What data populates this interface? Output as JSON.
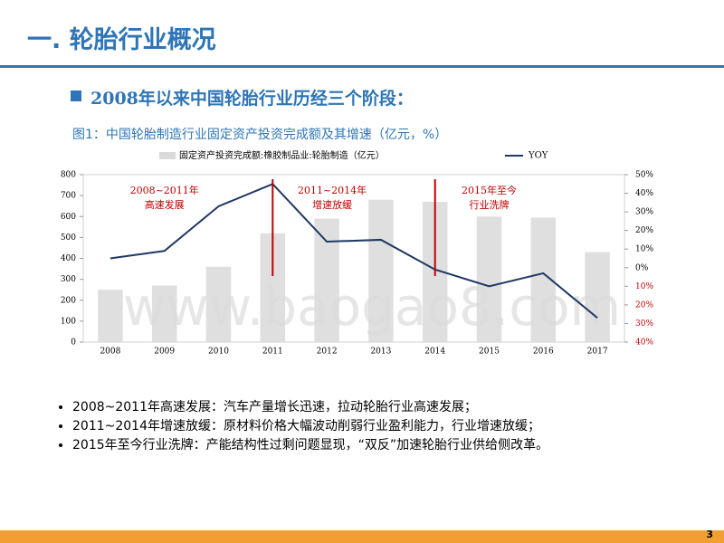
{
  "header": {
    "title": "一. 轮胎行业概况"
  },
  "section_heading": "2008年以来中国轮胎行业历经三个阶段：",
  "chart_data": {
    "type": "bar-line",
    "title": "图1：中国轮胎制造行业固定资产投资完成额及其增速（亿元，%）",
    "categories": [
      "2008",
      "2009",
      "2010",
      "2011",
      "2012",
      "2013",
      "2014",
      "2015",
      "2016",
      "2017"
    ],
    "series": [
      {
        "name": "固定资产投资完成额:橡胶制品业:轮胎制造（亿元）",
        "type": "bar",
        "color": "#d9d9d9",
        "values": [
          250,
          270,
          360,
          520,
          590,
          680,
          670,
          600,
          595,
          430
        ]
      },
      {
        "name": "YOY",
        "type": "line",
        "axis": "y2",
        "color": "#1f3864",
        "values": [
          5,
          9,
          33,
          45,
          14,
          15,
          -1,
          -10,
          -3,
          -27
        ]
      }
    ],
    "ylim": [
      0,
      800
    ],
    "yticks": [
      0,
      100,
      200,
      300,
      400,
      500,
      600,
      700,
      800
    ],
    "y2lim": [
      -40,
      50
    ],
    "y2ticks": [
      {
        "value": -40,
        "label": "40%"
      },
      {
        "value": -30,
        "label": "30%"
      },
      {
        "value": -20,
        "label": "20%"
      },
      {
        "value": -10,
        "label": "10%"
      },
      {
        "value": 0,
        "label": "0%"
      },
      {
        "value": 10,
        "label": "10%"
      },
      {
        "value": 20,
        "label": "20%"
      },
      {
        "value": 30,
        "label": "30%"
      },
      {
        "value": 40,
        "label": "40%"
      },
      {
        "value": 50,
        "label": "50%"
      }
    ],
    "y2_negative_tick_color": "#c00000",
    "annotations": [
      {
        "lines": [
          "2008~2011年",
          "高速发展"
        ],
        "color": "#c00000"
      },
      {
        "lines": [
          "2011~2014年",
          "增速放缓"
        ],
        "color": "#c00000"
      },
      {
        "lines": [
          "2015年至今",
          "行业洗牌"
        ],
        "color": "#c00000"
      }
    ],
    "watermark": "www.baogao8.com"
  },
  "bullets": [
    "2008~2011年高速发展：汽车产量增长迅速，拉动轮胎行业高速发展；",
    "2011~2014年增速放缓：原材料价格大幅波动削弱行业盈利能力，行业增速放缓；",
    "2015年至今行业洗牌：产能结构性过剩问题显现，“双反”加速轮胎行业供给侧改革。"
  ],
  "page_number": "3"
}
